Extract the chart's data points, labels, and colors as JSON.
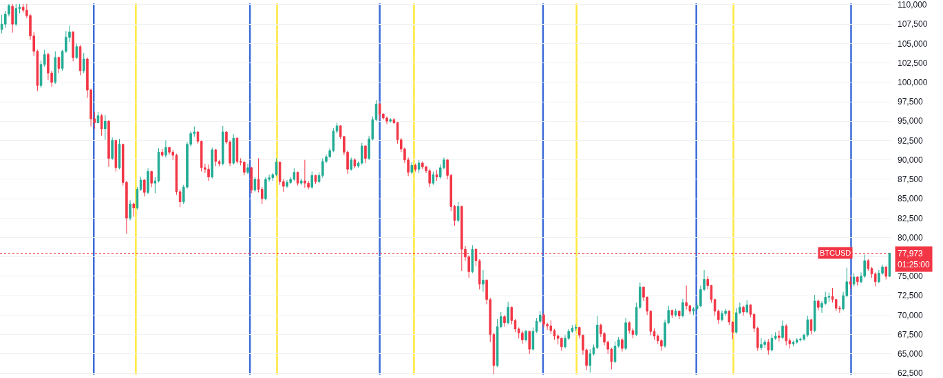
{
  "chart_data": {
    "type": "candlestick",
    "categories": [
      null,
      null,
      null,
      null,
      null,
      null,
      null,
      null,
      null,
      null,
      null,
      null,
      null,
      null,
      null,
      null,
      null,
      null,
      null,
      null,
      null,
      null,
      null,
      null,
      null,
      null,
      null,
      null,
      null,
      null,
      null,
      null,
      null,
      null,
      null,
      null,
      null,
      null,
      null,
      null,
      null,
      null,
      null,
      null,
      null,
      null,
      null,
      null,
      null,
      null,
      null,
      null,
      null,
      null,
      null,
      null,
      null,
      null,
      null,
      null,
      null,
      null,
      null,
      null,
      null,
      null,
      null,
      null,
      null,
      null,
      null,
      null,
      null,
      null,
      null,
      null,
      null,
      null,
      null,
      null,
      null,
      null,
      null,
      null,
      null,
      null,
      null,
      null,
      null,
      null,
      null,
      null,
      null,
      null,
      null,
      null,
      null,
      null,
      null,
      null,
      null,
      null,
      null,
      null,
      null,
      null,
      null,
      null,
      null,
      null,
      null,
      null,
      null,
      null,
      null,
      null,
      null,
      null,
      null,
      null,
      null,
      null,
      null,
      null,
      null,
      null,
      null,
      null,
      null,
      null,
      null,
      null,
      null,
      null,
      null,
      null,
      null,
      null,
      null,
      null,
      null,
      null,
      null,
      null,
      null,
      null,
      null,
      null,
      null,
      null,
      null,
      null,
      null,
      null,
      null,
      null,
      null,
      null,
      null,
      null,
      null,
      null,
      null,
      null,
      null,
      null,
      null,
      null,
      null,
      null,
      null,
      null,
      null,
      null,
      null,
      null,
      null,
      null,
      null,
      null,
      null,
      null,
      null,
      null,
      null,
      null,
      null,
      null,
      null,
      null,
      null,
      null,
      null,
      null,
      null,
      null,
      null,
      null,
      null,
      null,
      null,
      null,
      null,
      null,
      null,
      null,
      null,
      null,
      null,
      null,
      null,
      null,
      null,
      null,
      null,
      null,
      null,
      null,
      null,
      null,
      null,
      null,
      null,
      null,
      null,
      null,
      null,
      null,
      null,
      null,
      null,
      null,
      null,
      null,
      null,
      null,
      null,
      null,
      null,
      null,
      null,
      null,
      null,
      null,
      null,
      null,
      null,
      null,
      null,
      null
    ],
    "ohlc": [
      [
        106800,
        108700,
        106300,
        107500
      ],
      [
        107500,
        109200,
        107000,
        108800
      ],
      [
        108800,
        110100,
        108500,
        109900
      ],
      [
        109800,
        110100,
        106400,
        107500
      ],
      [
        107500,
        110100,
        107300,
        109500
      ],
      [
        109500,
        110100,
        108900,
        109700
      ],
      [
        109700,
        110100,
        109000,
        109300
      ],
      [
        109300,
        110100,
        108300,
        108600
      ],
      [
        108600,
        108800,
        105500,
        106000
      ],
      [
        106000,
        106500,
        103400,
        104000
      ],
      [
        104000,
        104200,
        98900,
        99600
      ],
      [
        99600,
        102800,
        99300,
        102300
      ],
      [
        102300,
        104200,
        102000,
        103600
      ],
      [
        103600,
        103800,
        100300,
        101200
      ],
      [
        101200,
        101500,
        99400,
        100000
      ],
      [
        100000,
        104000,
        99800,
        103200
      ],
      [
        103200,
        103300,
        101200,
        101800
      ],
      [
        101800,
        104200,
        101500,
        104000
      ],
      [
        104000,
        106600,
        103800,
        105800
      ],
      [
        105800,
        107300,
        105200,
        106500
      ],
      [
        106500,
        106600,
        102700,
        103200
      ],
      [
        103200,
        105000,
        103000,
        104600
      ],
      [
        104600,
        104800,
        100900,
        101500
      ],
      [
        101500,
        103800,
        101200,
        103000
      ],
      [
        103000,
        103200,
        98000,
        99000
      ],
      [
        99000,
        99200,
        94300,
        95300
      ],
      [
        95300,
        96200,
        94000,
        94800
      ],
      [
        94800,
        96200,
        94800,
        95700
      ],
      [
        95700,
        95900,
        93100,
        94000
      ],
      [
        94000,
        95800,
        92600,
        95000
      ],
      [
        95000,
        95100,
        89100,
        90200
      ],
      [
        90200,
        92900,
        90000,
        92500
      ],
      [
        92500,
        92600,
        88500,
        89000
      ],
      [
        89000,
        92700,
        88800,
        92000
      ],
      [
        92000,
        92100,
        86700,
        87100
      ],
      [
        87100,
        87300,
        80500,
        82500
      ],
      [
        82500,
        84800,
        82200,
        84300
      ],
      [
        84300,
        84500,
        82700,
        83800
      ],
      [
        83800,
        86500,
        83600,
        86200
      ],
      [
        86200,
        87800,
        86000,
        87400
      ],
      [
        87400,
        87500,
        85300,
        85800
      ],
      [
        85800,
        88900,
        85600,
        88500
      ],
      [
        88500,
        88600,
        86500,
        87000
      ],
      [
        87000,
        87800,
        85700,
        87300
      ],
      [
        87300,
        91500,
        87100,
        91000
      ],
      [
        91000,
        91400,
        90400,
        90600
      ],
      [
        90600,
        92500,
        90300,
        91600
      ],
      [
        91600,
        91700,
        90700,
        91000
      ],
      [
        91000,
        91300,
        90000,
        90600
      ],
      [
        90600,
        90800,
        85500,
        85900
      ],
      [
        85900,
        86200,
        83900,
        84600
      ],
      [
        84600,
        86800,
        84300,
        86500
      ],
      [
        86500,
        92300,
        86300,
        92000
      ],
      [
        92000,
        93700,
        91700,
        93400
      ],
      [
        93400,
        94300,
        93000,
        93600
      ],
      [
        93600,
        93700,
        92100,
        92400
      ],
      [
        92400,
        92500,
        88500,
        89000
      ],
      [
        89000,
        89500,
        88300,
        88800
      ],
      [
        88800,
        89400,
        87300,
        87800
      ],
      [
        87800,
        91600,
        87600,
        91300
      ],
      [
        91300,
        91400,
        89200,
        89800
      ],
      [
        89800,
        90000,
        89200,
        89500
      ],
      [
        89500,
        94400,
        89300,
        93600
      ],
      [
        93600,
        93700,
        92000,
        92300
      ],
      [
        92300,
        92500,
        89200,
        89600
      ],
      [
        89600,
        93300,
        89400,
        92800
      ],
      [
        92800,
        92900,
        89500,
        89800
      ],
      [
        89800,
        90200,
        89300,
        89700
      ],
      [
        89700,
        89800,
        88000,
        88400
      ],
      [
        88400,
        89500,
        88200,
        89000
      ],
      [
        89000,
        89100,
        85700,
        86100
      ],
      [
        86100,
        87800,
        85900,
        87500
      ],
      [
        87500,
        90200,
        85800,
        86200
      ],
      [
        86200,
        86500,
        84300,
        85000
      ],
      [
        85000,
        87800,
        84800,
        87500
      ],
      [
        87500,
        88100,
        87200,
        87700
      ],
      [
        87700,
        88300,
        87300,
        88100
      ],
      [
        88100,
        90200,
        87900,
        89700
      ],
      [
        89700,
        89800,
        86800,
        87200
      ],
      [
        87200,
        87500,
        85900,
        86600
      ],
      [
        86600,
        87400,
        86400,
        87100
      ],
      [
        87100,
        87800,
        86900,
        87500
      ],
      [
        87500,
        88900,
        87300,
        88400
      ],
      [
        88400,
        88500,
        86700,
        87000
      ],
      [
        87000,
        87600,
        86800,
        87300
      ],
      [
        87300,
        90000,
        86400,
        87000
      ],
      [
        87000,
        87300,
        86200,
        86500
      ],
      [
        86500,
        88500,
        86300,
        88000
      ],
      [
        88000,
        88100,
        86900,
        87200
      ],
      [
        87200,
        88400,
        87000,
        88000
      ],
      [
        88000,
        90200,
        87700,
        89800
      ],
      [
        89800,
        90700,
        89600,
        90400
      ],
      [
        90400,
        91500,
        90300,
        91200
      ],
      [
        91200,
        94100,
        91000,
        93700
      ],
      [
        93700,
        94800,
        93400,
        94400
      ],
      [
        94400,
        94500,
        92700,
        93000
      ],
      [
        93000,
        93100,
        90600,
        91000
      ],
      [
        91000,
        91200,
        88200,
        88800
      ],
      [
        88800,
        90300,
        88600,
        90000
      ],
      [
        90000,
        90200,
        88900,
        89200
      ],
      [
        89200,
        89800,
        89000,
        89600
      ],
      [
        89600,
        92200,
        89400,
        91800
      ],
      [
        91800,
        91900,
        89600,
        90200
      ],
      [
        90200,
        93100,
        90000,
        92700
      ],
      [
        92700,
        95600,
        92500,
        95200
      ],
      [
        95200,
        97700,
        95000,
        97200
      ],
      [
        97200,
        97300,
        95200,
        95900
      ],
      [
        95900,
        96000,
        95200,
        95400
      ],
      [
        95400,
        95600,
        94600,
        95000
      ],
      [
        95000,
        95400,
        94800,
        95200
      ],
      [
        95200,
        95400,
        94600,
        94800
      ],
      [
        94800,
        94900,
        92100,
        92600
      ],
      [
        92600,
        92800,
        91000,
        91400
      ],
      [
        91400,
        91600,
        89600,
        90000
      ],
      [
        90000,
        90300,
        87900,
        88400
      ],
      [
        88400,
        89700,
        88200,
        89300
      ],
      [
        89300,
        89500,
        88500,
        88800
      ],
      [
        88800,
        90000,
        88300,
        89600
      ],
      [
        89600,
        89800,
        88800,
        89100
      ],
      [
        89100,
        89200,
        88300,
        88600
      ],
      [
        88600,
        88800,
        86500,
        87000
      ],
      [
        87000,
        88500,
        86800,
        88100
      ],
      [
        88100,
        88700,
        87300,
        87800
      ],
      [
        87800,
        89400,
        87600,
        89000
      ],
      [
        89000,
        90300,
        88800,
        90000
      ],
      [
        90000,
        90100,
        87500,
        88000
      ],
      [
        88000,
        88200,
        83400,
        84000
      ],
      [
        84000,
        84200,
        81500,
        82200
      ],
      [
        82200,
        84600,
        82000,
        84000
      ],
      [
        84000,
        84100,
        75700,
        78500
      ],
      [
        78500,
        78900,
        77000,
        77500
      ],
      [
        77500,
        77700,
        74800,
        75600
      ],
      [
        75600,
        79000,
        75400,
        78500
      ],
      [
        78500,
        78600,
        76300,
        77000
      ],
      [
        77000,
        77200,
        73300,
        74000
      ],
      [
        74000,
        75800,
        73000,
        74500
      ],
      [
        74500,
        74600,
        71400,
        72000
      ],
      [
        72000,
        72200,
        66500,
        67500
      ],
      [
        67500,
        67700,
        62400,
        63500
      ],
      [
        63500,
        69500,
        63300,
        68500
      ],
      [
        68500,
        70400,
        68300,
        69800
      ],
      [
        69800,
        70000,
        68500,
        69000
      ],
      [
        69000,
        71700,
        68800,
        71000
      ],
      [
        71000,
        71100,
        68800,
        69300
      ],
      [
        69300,
        69500,
        67800,
        68200
      ],
      [
        68200,
        68400,
        67000,
        67700
      ],
      [
        67700,
        68000,
        66300,
        66800
      ],
      [
        66800,
        68100,
        66600,
        67900
      ],
      [
        67900,
        68000,
        65000,
        65600
      ],
      [
        65600,
        68400,
        65400,
        67900
      ],
      [
        67900,
        69600,
        67700,
        69200
      ],
      [
        69200,
        70500,
        69000,
        70000
      ],
      [
        70000,
        70300,
        68400,
        68800
      ],
      [
        68800,
        69000,
        68100,
        68600
      ],
      [
        68600,
        69300,
        67600,
        68000
      ],
      [
        68000,
        68200,
        66800,
        67300
      ],
      [
        67300,
        67500,
        66200,
        67000
      ],
      [
        67000,
        67100,
        65400,
        65900
      ],
      [
        65900,
        67400,
        65700,
        67000
      ],
      [
        67000,
        68200,
        66800,
        67900
      ],
      [
        67900,
        68700,
        67700,
        68300
      ],
      [
        68300,
        68800,
        67900,
        68400
      ],
      [
        68400,
        68500,
        67000,
        67400
      ],
      [
        67400,
        67500,
        64900,
        65500
      ],
      [
        65500,
        65700,
        62900,
        63500
      ],
      [
        63500,
        65600,
        62600,
        65000
      ],
      [
        65000,
        66200,
        64800,
        65800
      ],
      [
        65800,
        69900,
        65600,
        68700
      ],
      [
        68700,
        68900,
        67200,
        67600
      ],
      [
        67600,
        67800,
        66100,
        66500
      ],
      [
        66500,
        66700,
        65000,
        65600
      ],
      [
        65600,
        65800,
        63000,
        64000
      ],
      [
        64000,
        66600,
        63800,
        66000
      ],
      [
        66000,
        67200,
        65800,
        66800
      ],
      [
        66800,
        67000,
        65300,
        65700
      ],
      [
        65700,
        69600,
        65500,
        69000
      ],
      [
        69000,
        69200,
        67600,
        68000
      ],
      [
        68000,
        68300,
        67000,
        67500
      ],
      [
        67500,
        71600,
        67300,
        71000
      ],
      [
        71000,
        74200,
        70800,
        73600
      ],
      [
        73600,
        73700,
        71800,
        72300
      ],
      [
        72300,
        72400,
        70000,
        70500
      ],
      [
        70500,
        70600,
        67400,
        67900
      ],
      [
        67900,
        68300,
        66800,
        67300
      ],
      [
        67300,
        67500,
        66300,
        66700
      ],
      [
        66700,
        66900,
        65400,
        66000
      ],
      [
        66000,
        69400,
        65800,
        69000
      ],
      [
        69000,
        71200,
        68800,
        70600
      ],
      [
        70600,
        70700,
        69600,
        70000
      ],
      [
        70000,
        70800,
        69800,
        70500
      ],
      [
        70500,
        70600,
        69500,
        69900
      ],
      [
        69900,
        72100,
        69700,
        71600
      ],
      [
        71600,
        73800,
        70700,
        71200
      ],
      [
        71200,
        71300,
        70100,
        70500
      ],
      [
        70500,
        71000,
        70000,
        70800
      ],
      [
        70800,
        71700,
        70600,
        71200
      ],
      [
        71200,
        73800,
        71000,
        73300
      ],
      [
        73300,
        75800,
        73100,
        74600
      ],
      [
        74600,
        75000,
        73300,
        73800
      ],
      [
        73800,
        73900,
        71600,
        72000
      ],
      [
        72000,
        72100,
        69900,
        70500
      ],
      [
        70500,
        70700,
        68900,
        69400
      ],
      [
        69400,
        70600,
        69200,
        70200
      ],
      [
        70200,
        70800,
        69900,
        70500
      ],
      [
        70500,
        70600,
        68700,
        69100
      ],
      [
        69100,
        69200,
        66900,
        67800
      ],
      [
        67800,
        70900,
        67600,
        70300
      ],
      [
        70300,
        71600,
        70100,
        71000
      ],
      [
        71000,
        71200,
        69900,
        70400
      ],
      [
        70400,
        71900,
        70200,
        71300
      ],
      [
        71300,
        71400,
        69700,
        70100
      ],
      [
        70100,
        70200,
        67800,
        68300
      ],
      [
        68300,
        68500,
        65400,
        65800
      ],
      [
        65800,
        67000,
        65500,
        66200
      ],
      [
        66200,
        66800,
        65800,
        66500
      ],
      [
        66500,
        66900,
        64900,
        65500
      ],
      [
        65500,
        67500,
        65300,
        67000
      ],
      [
        67000,
        67800,
        66800,
        67300
      ],
      [
        67300,
        68000,
        66600,
        67100
      ],
      [
        67100,
        69300,
        66900,
        68600
      ],
      [
        68600,
        68800,
        66100,
        66700
      ],
      [
        66700,
        67000,
        65700,
        66300
      ],
      [
        66300,
        66700,
        66000,
        66500
      ],
      [
        66500,
        67000,
        66300,
        66800
      ],
      [
        66800,
        67100,
        66600,
        66900
      ],
      [
        66900,
        67600,
        66700,
        67400
      ],
      [
        67400,
        69900,
        67200,
        69400
      ],
      [
        69400,
        69500,
        67500,
        68000
      ],
      [
        68000,
        72600,
        67800,
        71800
      ],
      [
        71800,
        72000,
        70600,
        71000
      ],
      [
        71000,
        71800,
        70300,
        71500
      ],
      [
        71500,
        73000,
        71300,
        72300
      ],
      [
        72300,
        72900,
        71700,
        72400
      ],
      [
        72400,
        73500,
        71600,
        72000
      ],
      [
        72000,
        72100,
        70500,
        70900
      ],
      [
        70900,
        71200,
        70300,
        70800
      ],
      [
        70800,
        73000,
        70600,
        72500
      ],
      [
        72500,
        76100,
        72300,
        74300
      ],
      [
        74300,
        75000,
        73400,
        74000
      ],
      [
        74000,
        75400,
        73700,
        74900
      ],
      [
        74900,
        75000,
        73800,
        74300
      ],
      [
        74300,
        75500,
        74100,
        75000
      ],
      [
        75000,
        77800,
        74800,
        77000
      ],
      [
        77000,
        77200,
        75700,
        76000
      ],
      [
        76000,
        76200,
        74800,
        75300
      ],
      [
        75300,
        75500,
        73700,
        74300
      ],
      [
        74300,
        75800,
        74100,
        75400
      ],
      [
        75400,
        76500,
        75200,
        76200
      ],
      [
        76200,
        76300,
        74600,
        75000
      ],
      [
        75000,
        78000,
        74900,
        77973
      ]
    ],
    "ylim": [
      62330,
      110170
    ],
    "yticks": [
      {
        "value": 62500,
        "label": "62,500"
      },
      {
        "value": 65000,
        "label": "65,000"
      },
      {
        "value": 67500,
        "label": "67,500"
      },
      {
        "value": 70000,
        "label": "70,000"
      },
      {
        "value": 72500,
        "label": "72,500"
      },
      {
        "value": 75000,
        "label": "75,000"
      },
      {
        "value": 77500,
        "label": null
      },
      {
        "value": 80000,
        "label": "80,000"
      },
      {
        "value": 82500,
        "label": "82,500"
      },
      {
        "value": 85000,
        "label": "85,000"
      },
      {
        "value": 87500,
        "label": "87,500"
      },
      {
        "value": 90000,
        "label": "90,000"
      },
      {
        "value": 92500,
        "label": "92,500"
      },
      {
        "value": 95000,
        "label": "95,000"
      },
      {
        "value": 97500,
        "label": "97,500"
      },
      {
        "value": 100000,
        "label": "100,000"
      },
      {
        "value": 102500,
        "label": "102,500"
      },
      {
        "value": 105000,
        "label": "105,000"
      },
      {
        "value": 107500,
        "label": "107,500"
      },
      {
        "value": 110000,
        "label": "110,000"
      }
    ],
    "tick_labels": "y",
    "grid": "y",
    "ref_lines": [
      {
        "axis": "y",
        "value": 77973,
        "label": "BTCUSD",
        "color": "#f23645",
        "line_style": "dotted"
      }
    ],
    "annotations": [
      "77,973",
      "01:25:00"
    ]
  }
}
